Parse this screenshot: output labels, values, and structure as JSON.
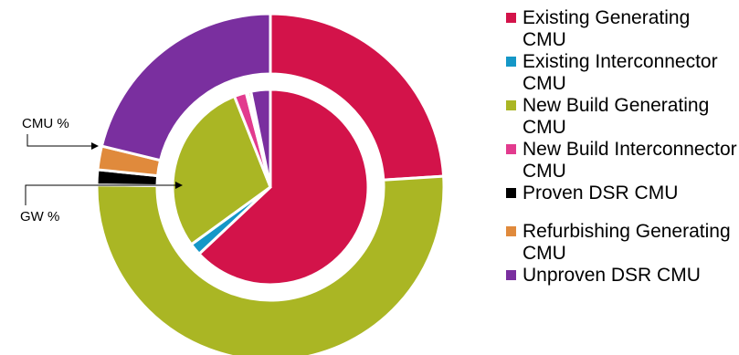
{
  "chart_data": {
    "type": "donut",
    "title": "",
    "ring_labels": {
      "outer": "CMU %",
      "inner": "GW %"
    },
    "categories": [
      "Existing Generating CMU",
      "Existing Interconnector CMU",
      "New Build Generating CMU",
      "New Build Interconnector CMU",
      "Proven DSR CMU",
      "Refurbishing Generating CMU",
      "Unproven DSR CMU"
    ],
    "colors": [
      "#d3134a",
      "#1597c7",
      "#aab624",
      "#e23b8e",
      "#000000",
      "#e08a3c",
      "#7a2f9f"
    ],
    "series": [
      {
        "name": "CMU %",
        "values": [
          24.0,
          0.0,
          51.2,
          0.0,
          1.4,
          2.2,
          21.2
        ]
      },
      {
        "name": "GW %",
        "values": [
          63.0,
          2.0,
          29.0,
          2.0,
          0.3,
          0.5,
          3.2
        ]
      }
    ],
    "legend_position": "right"
  },
  "legend": {
    "items": [
      {
        "label": "Existing Generating CMU",
        "color": "#d3134a"
      },
      {
        "label": "Existing Interconnector CMU",
        "color": "#1597c7"
      },
      {
        "label": "New Build Generating CMU",
        "color": "#aab624"
      },
      {
        "label": "New Build Interconnector CMU",
        "color": "#e23b8e"
      },
      {
        "label": "Proven DSR CMU",
        "color": "#000000"
      },
      {
        "label": "Refurbishing Generating CMU",
        "color": "#e08a3c"
      },
      {
        "label": "Unproven DSR CMU",
        "color": "#7a2f9f"
      }
    ]
  }
}
